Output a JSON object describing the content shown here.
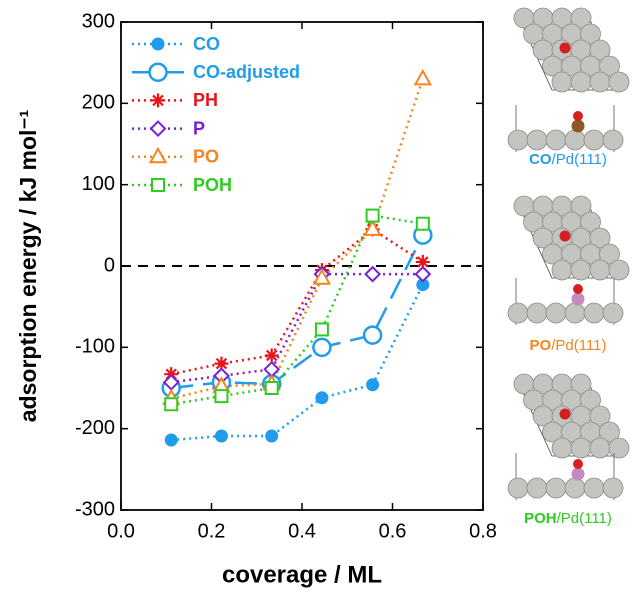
{
  "chart_data": {
    "type": "line",
    "y_label": "adsorption energy / kJ mol⁻¹",
    "x_label": "coverage / ML",
    "x": [
      0.111,
      0.222,
      0.333,
      0.444,
      0.556,
      0.667
    ],
    "series": [
      {
        "name": "CO",
        "color": "#1f9ceb",
        "marker": "circle-filled",
        "dash": "dotted",
        "values": [
          -214,
          -209,
          -209,
          -162,
          -146,
          -23
        ]
      },
      {
        "name": "CO-adjusted",
        "color": "#1f9ceb",
        "marker": "circle-open",
        "dash": "dashed",
        "values": [
          -150,
          -143,
          -145,
          -100,
          -85,
          38
        ]
      },
      {
        "name": "PH",
        "color": "#e8141c",
        "marker": "asterisk",
        "dash": "dotted",
        "values": [
          -133,
          -120,
          -110,
          -5,
          45,
          5
        ]
      },
      {
        "name": "P",
        "color": "#7a20d4",
        "marker": "diamond",
        "dash": "dotted",
        "values": [
          -143,
          -135,
          -127,
          -10,
          -10,
          -10
        ]
      },
      {
        "name": "PO",
        "color": "#f5841f",
        "marker": "triangle",
        "dash": "dotted",
        "values": [
          -163,
          -148,
          -145,
          -15,
          45,
          230
        ]
      },
      {
        "name": "POH",
        "color": "#2ecc1f",
        "marker": "square",
        "dash": "dotted",
        "values": [
          -170,
          -160,
          -150,
          -78,
          62,
          52
        ]
      }
    ],
    "xlim": [
      0,
      0.8
    ],
    "ylim": [
      -300,
      300
    ],
    "xticks": [
      {
        "value": 0,
        "label": "0.0"
      },
      0.2,
      0.4,
      0.6,
      {
        "value": 0.8,
        "label": "0.8"
      }
    ],
    "yticks": [
      -300,
      -200,
      -100,
      0,
      100,
      200,
      300
    ],
    "reference_line": 0,
    "legend": "upper left"
  },
  "structure_labels": [
    {
      "adsorbate": "CO",
      "surface": "/Pd(111)",
      "color": "#1f9ceb"
    },
    {
      "adsorbate": "PO",
      "surface": "/Pd(111)",
      "color": "#f5841f"
    },
    {
      "adsorbate": "POH",
      "surface": "/Pd(111)",
      "color": "#2ecc1f"
    }
  ]
}
